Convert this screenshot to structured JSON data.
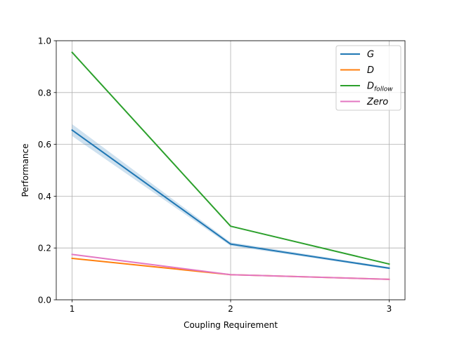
{
  "chart_data": {
    "type": "line",
    "title": "",
    "xlabel": "Coupling Requirement",
    "ylabel": "Performance",
    "x": [
      1,
      2,
      3
    ],
    "xticks": [
      "1",
      "2",
      "3"
    ],
    "xlim": [
      0.9,
      3.1
    ],
    "ylim": [
      0.0,
      1.0
    ],
    "yticks": [
      "0.0",
      "0.2",
      "0.4",
      "0.6",
      "0.8",
      "1.0"
    ],
    "grid": true,
    "legend_position": "top-right",
    "series": [
      {
        "name": "G",
        "name_sub": "",
        "color": "#1f77b4",
        "values": [
          0.655,
          0.215,
          0.122
        ],
        "band_lower": [
          0.632,
          0.208,
          0.118
        ],
        "band_upper": [
          0.678,
          0.222,
          0.126
        ]
      },
      {
        "name": "D",
        "name_sub": "",
        "color": "#ff7f0e",
        "values": [
          0.16,
          0.097,
          0.079
        ]
      },
      {
        "name": "D",
        "name_sub": "follow",
        "color": "#2ca02c",
        "values": [
          0.955,
          0.284,
          0.138
        ]
      },
      {
        "name": "Zero",
        "name_sub": "",
        "color": "#e377c2",
        "values": [
          0.175,
          0.097,
          0.079
        ]
      }
    ]
  }
}
